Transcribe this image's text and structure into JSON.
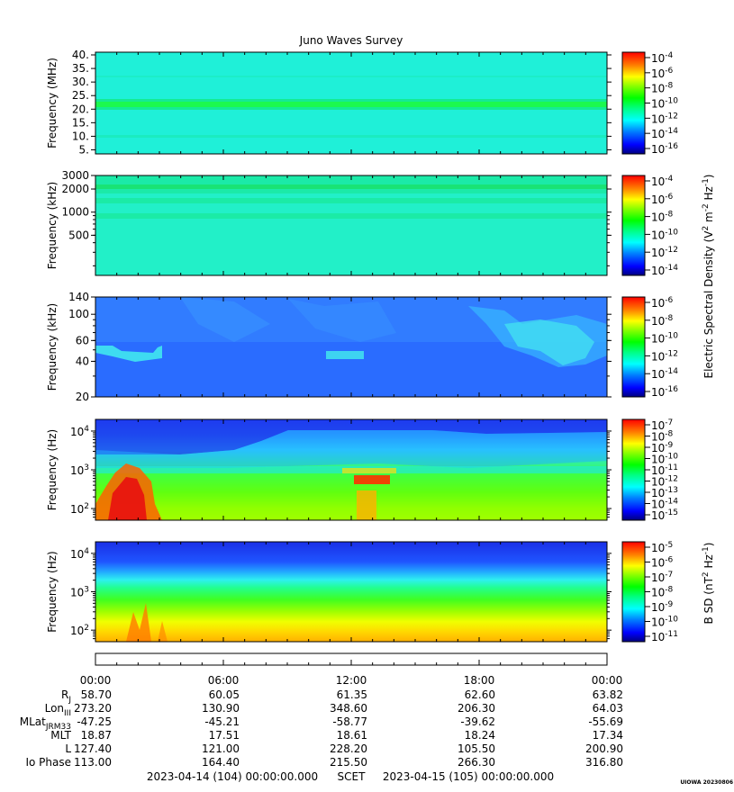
{
  "chart_data": {
    "type": "heatmap",
    "title": "Juno Waves Survey",
    "x": {
      "tick_labels": [
        "00:00",
        "06:00",
        "12:00",
        "18:00",
        "00:00"
      ],
      "start": "2023-04-14 (104) 00:00:00.000",
      "end": "2023-04-15 (105) 00:00:00.000",
      "time_label": "SCET"
    },
    "panels": [
      {
        "id": "p1",
        "ylabel": "Frequency (MHz)",
        "yscale": "linear",
        "ylim": [
          3.5,
          41
        ],
        "yticks": [
          {
            "v": 40,
            "t": "40."
          },
          {
            "v": 35,
            "t": "35."
          },
          {
            "v": 30,
            "t": "30."
          },
          {
            "v": 25,
            "t": "25."
          },
          {
            "v": 20,
            "t": "20."
          },
          {
            "v": 15,
            "t": "15."
          },
          {
            "v": 10,
            "t": "10."
          },
          {
            "v": 5,
            "t": "5."
          }
        ],
        "colorbar": {
          "labels": [
            {
              "base": "10",
              "exp": "-4"
            },
            {
              "base": "10",
              "exp": "-6"
            },
            {
              "base": "10",
              "exp": "-8"
            },
            {
              "base": "10",
              "exp": "-10"
            },
            {
              "base": "10",
              "exp": "-12"
            },
            {
              "base": "10",
              "exp": "-14"
            },
            {
              "base": "10",
              "exp": "-16"
            }
          ]
        }
      },
      {
        "id": "p2",
        "ylabel": "Frequency (kHz)",
        "yscale": "log",
        "ylim": [
          150,
          3000
        ],
        "yticks": [
          {
            "v": 3000,
            "t": "3000"
          },
          {
            "v": 2000,
            "t": "2000"
          },
          {
            "v": 1000,
            "t": "1000"
          },
          {
            "v": 500,
            "t": "500"
          }
        ],
        "colorbar": {
          "labels": [
            {
              "base": "10",
              "exp": "-4"
            },
            {
              "base": "10",
              "exp": "-6"
            },
            {
              "base": "10",
              "exp": "-8"
            },
            {
              "base": "10",
              "exp": "-10"
            },
            {
              "base": "10",
              "exp": "-12"
            },
            {
              "base": "10",
              "exp": "-14"
            }
          ]
        }
      },
      {
        "id": "p3",
        "ylabel": "Frequency (kHz)",
        "yscale": "log",
        "ylim": [
          20,
          140
        ],
        "yticks": [
          {
            "v": 140,
            "t": "140"
          },
          {
            "v": 100,
            "t": "100"
          },
          {
            "v": 60,
            "t": "60"
          },
          {
            "v": 40,
            "t": "40"
          },
          {
            "v": 20,
            "t": "20"
          }
        ],
        "colorbar": {
          "labels": [
            {
              "base": "10",
              "exp": "-6"
            },
            {
              "base": "10",
              "exp": "-8"
            },
            {
              "base": "10",
              "exp": "-10"
            },
            {
              "base": "10",
              "exp": "-12"
            },
            {
              "base": "10",
              "exp": "-14"
            },
            {
              "base": "10",
              "exp": "-16"
            }
          ]
        }
      },
      {
        "id": "p4",
        "ylabel": "Frequency (Hz)",
        "yscale": "log",
        "ylim": [
          50,
          20000
        ],
        "yticks": [
          {
            "v": 10000,
            "base": "10",
            "exp": "4"
          },
          {
            "v": 1000,
            "base": "10",
            "exp": "3"
          },
          {
            "v": 100,
            "base": "10",
            "exp": "2"
          }
        ],
        "colorbar": {
          "labels": [
            {
              "base": "10",
              "exp": "-7"
            },
            {
              "base": "10",
              "exp": "-8"
            },
            {
              "base": "10",
              "exp": "-9"
            },
            {
              "base": "10",
              "exp": "-10"
            },
            {
              "base": "10",
              "exp": "-11"
            },
            {
              "base": "10",
              "exp": "-12"
            },
            {
              "base": "10",
              "exp": "-13"
            },
            {
              "base": "10",
              "exp": "-14"
            },
            {
              "base": "10",
              "exp": "-15"
            }
          ]
        }
      },
      {
        "id": "p5",
        "ylabel": "Frequency (Hz)",
        "yscale": "log",
        "ylim": [
          50,
          20000
        ],
        "yticks": [
          {
            "v": 10000,
            "base": "10",
            "exp": "4"
          },
          {
            "v": 1000,
            "base": "10",
            "exp": "3"
          },
          {
            "v": 100,
            "base": "10",
            "exp": "2"
          }
        ],
        "colorbar": {
          "labels": [
            {
              "base": "10",
              "exp": "-5"
            },
            {
              "base": "10",
              "exp": "-6"
            },
            {
              "base": "10",
              "exp": "-7"
            },
            {
              "base": "10",
              "exp": "-8"
            },
            {
              "base": "10",
              "exp": "-9"
            },
            {
              "base": "10",
              "exp": "-10"
            },
            {
              "base": "10",
              "exp": "-11"
            }
          ]
        }
      }
    ],
    "colorbar_titles": {
      "electric": {
        "pre": "Electric Spectral Density (V",
        "s1": "2",
        "mid": " m",
        "s2": "-2",
        "mid2": " Hz",
        "s3": "-1",
        "post": ")"
      },
      "magnetic": {
        "pre": "B SD (nT",
        "s1": "2",
        "mid": " Hz",
        "s2": "-1",
        "post": ")"
      }
    },
    "ephemeris": [
      {
        "label": "R",
        "sub": "J",
        "values": [
          "58.70",
          "60.05",
          "61.35",
          "62.60",
          "63.82"
        ]
      },
      {
        "label": "Lon",
        "sub": "III",
        "values": [
          "273.20",
          "130.90",
          "348.60",
          "206.30",
          "64.03"
        ]
      },
      {
        "label": "MLat",
        "sub": "JRM33",
        "values": [
          "-47.25",
          "-45.21",
          "-58.77",
          "-39.62",
          "-55.69"
        ]
      },
      {
        "label": "MLT",
        "sub": "",
        "values": [
          "18.87",
          "17.51",
          "18.61",
          "18.24",
          "17.34"
        ]
      },
      {
        "label": "L",
        "sub": "",
        "values": [
          "127.40",
          "121.00",
          "228.20",
          "105.50",
          "200.90"
        ]
      },
      {
        "label": "Io Phase",
        "sub": "",
        "values": [
          "113.00",
          "164.40",
          "215.50",
          "266.30",
          "316.80"
        ]
      }
    ],
    "footer_mark": "UIOWA 20230806"
  }
}
